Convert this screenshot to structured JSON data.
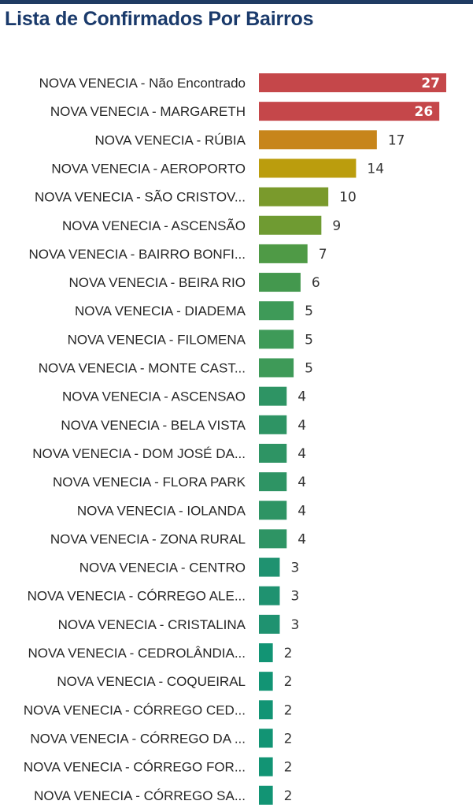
{
  "header": {
    "title": "Lista de Confirmados Por Bairros"
  },
  "chart_data": {
    "type": "bar",
    "orientation": "horizontal",
    "title": "Lista de Confirmados Por Bairros",
    "xlabel": "",
    "ylabel": "",
    "grid": false,
    "legend": "none",
    "categories": [
      "NOVA VENECIA - Não Encontrado",
      "NOVA VENECIA - MARGARETH",
      "NOVA VENECIA - RÚBIA",
      "NOVA VENECIA - AEROPORTO",
      "NOVA VENECIA - SÃO CRISTOV...",
      "NOVA VENECIA - ASCENSÃO",
      "NOVA VENECIA - BAIRRO BONFI...",
      "NOVA VENECIA - BEIRA RIO",
      "NOVA VENECIA - DIADEMA",
      "NOVA VENECIA - FILOMENA",
      "NOVA VENECIA - MONTE CAST...",
      "NOVA VENECIA - ASCENSAO",
      "NOVA VENECIA - BELA VISTA",
      "NOVA VENECIA - DOM JOSÉ DA...",
      "NOVA VENECIA - FLORA PARK",
      "NOVA VENECIA - IOLANDA",
      "NOVA VENECIA - ZONA RURAL",
      "NOVA VENECIA - CENTRO",
      "NOVA VENECIA - CÓRREGO ALE...",
      "NOVA VENECIA - CRISTALINA",
      "NOVA VENECIA - CEDROLÂNDIA...",
      "NOVA VENECIA - COQUEIRAL",
      "NOVA VENECIA - CÓRREGO CED...",
      "NOVA VENECIA - CÓRREGO DA ...",
      "NOVA VENECIA - CÓRREGO FOR...",
      "NOVA VENECIA - CÓRREGO SA..."
    ],
    "values": [
      27,
      26,
      17,
      14,
      10,
      9,
      7,
      6,
      5,
      5,
      5,
      4,
      4,
      4,
      4,
      4,
      4,
      3,
      3,
      3,
      2,
      2,
      2,
      2,
      2,
      2
    ],
    "xlim": [
      0,
      27
    ],
    "colors": [
      "#c5474a",
      "#c5474a",
      "#c7851b",
      "#bb9d0d",
      "#7a9a2c",
      "#6f9b32",
      "#4f9a46",
      "#44984e",
      "#3e9a58",
      "#3e9a58",
      "#3e9a58",
      "#2e9464",
      "#2e9464",
      "#2e9464",
      "#2e9464",
      "#2e9464",
      "#2e9464",
      "#1f9270",
      "#1f9270",
      "#1f9270",
      "#129474",
      "#129474",
      "#129474",
      "#129474",
      "#129474",
      "#129474"
    ],
    "value_label_inside_color": "#ffffff",
    "value_label_outside_color": "#333333"
  }
}
